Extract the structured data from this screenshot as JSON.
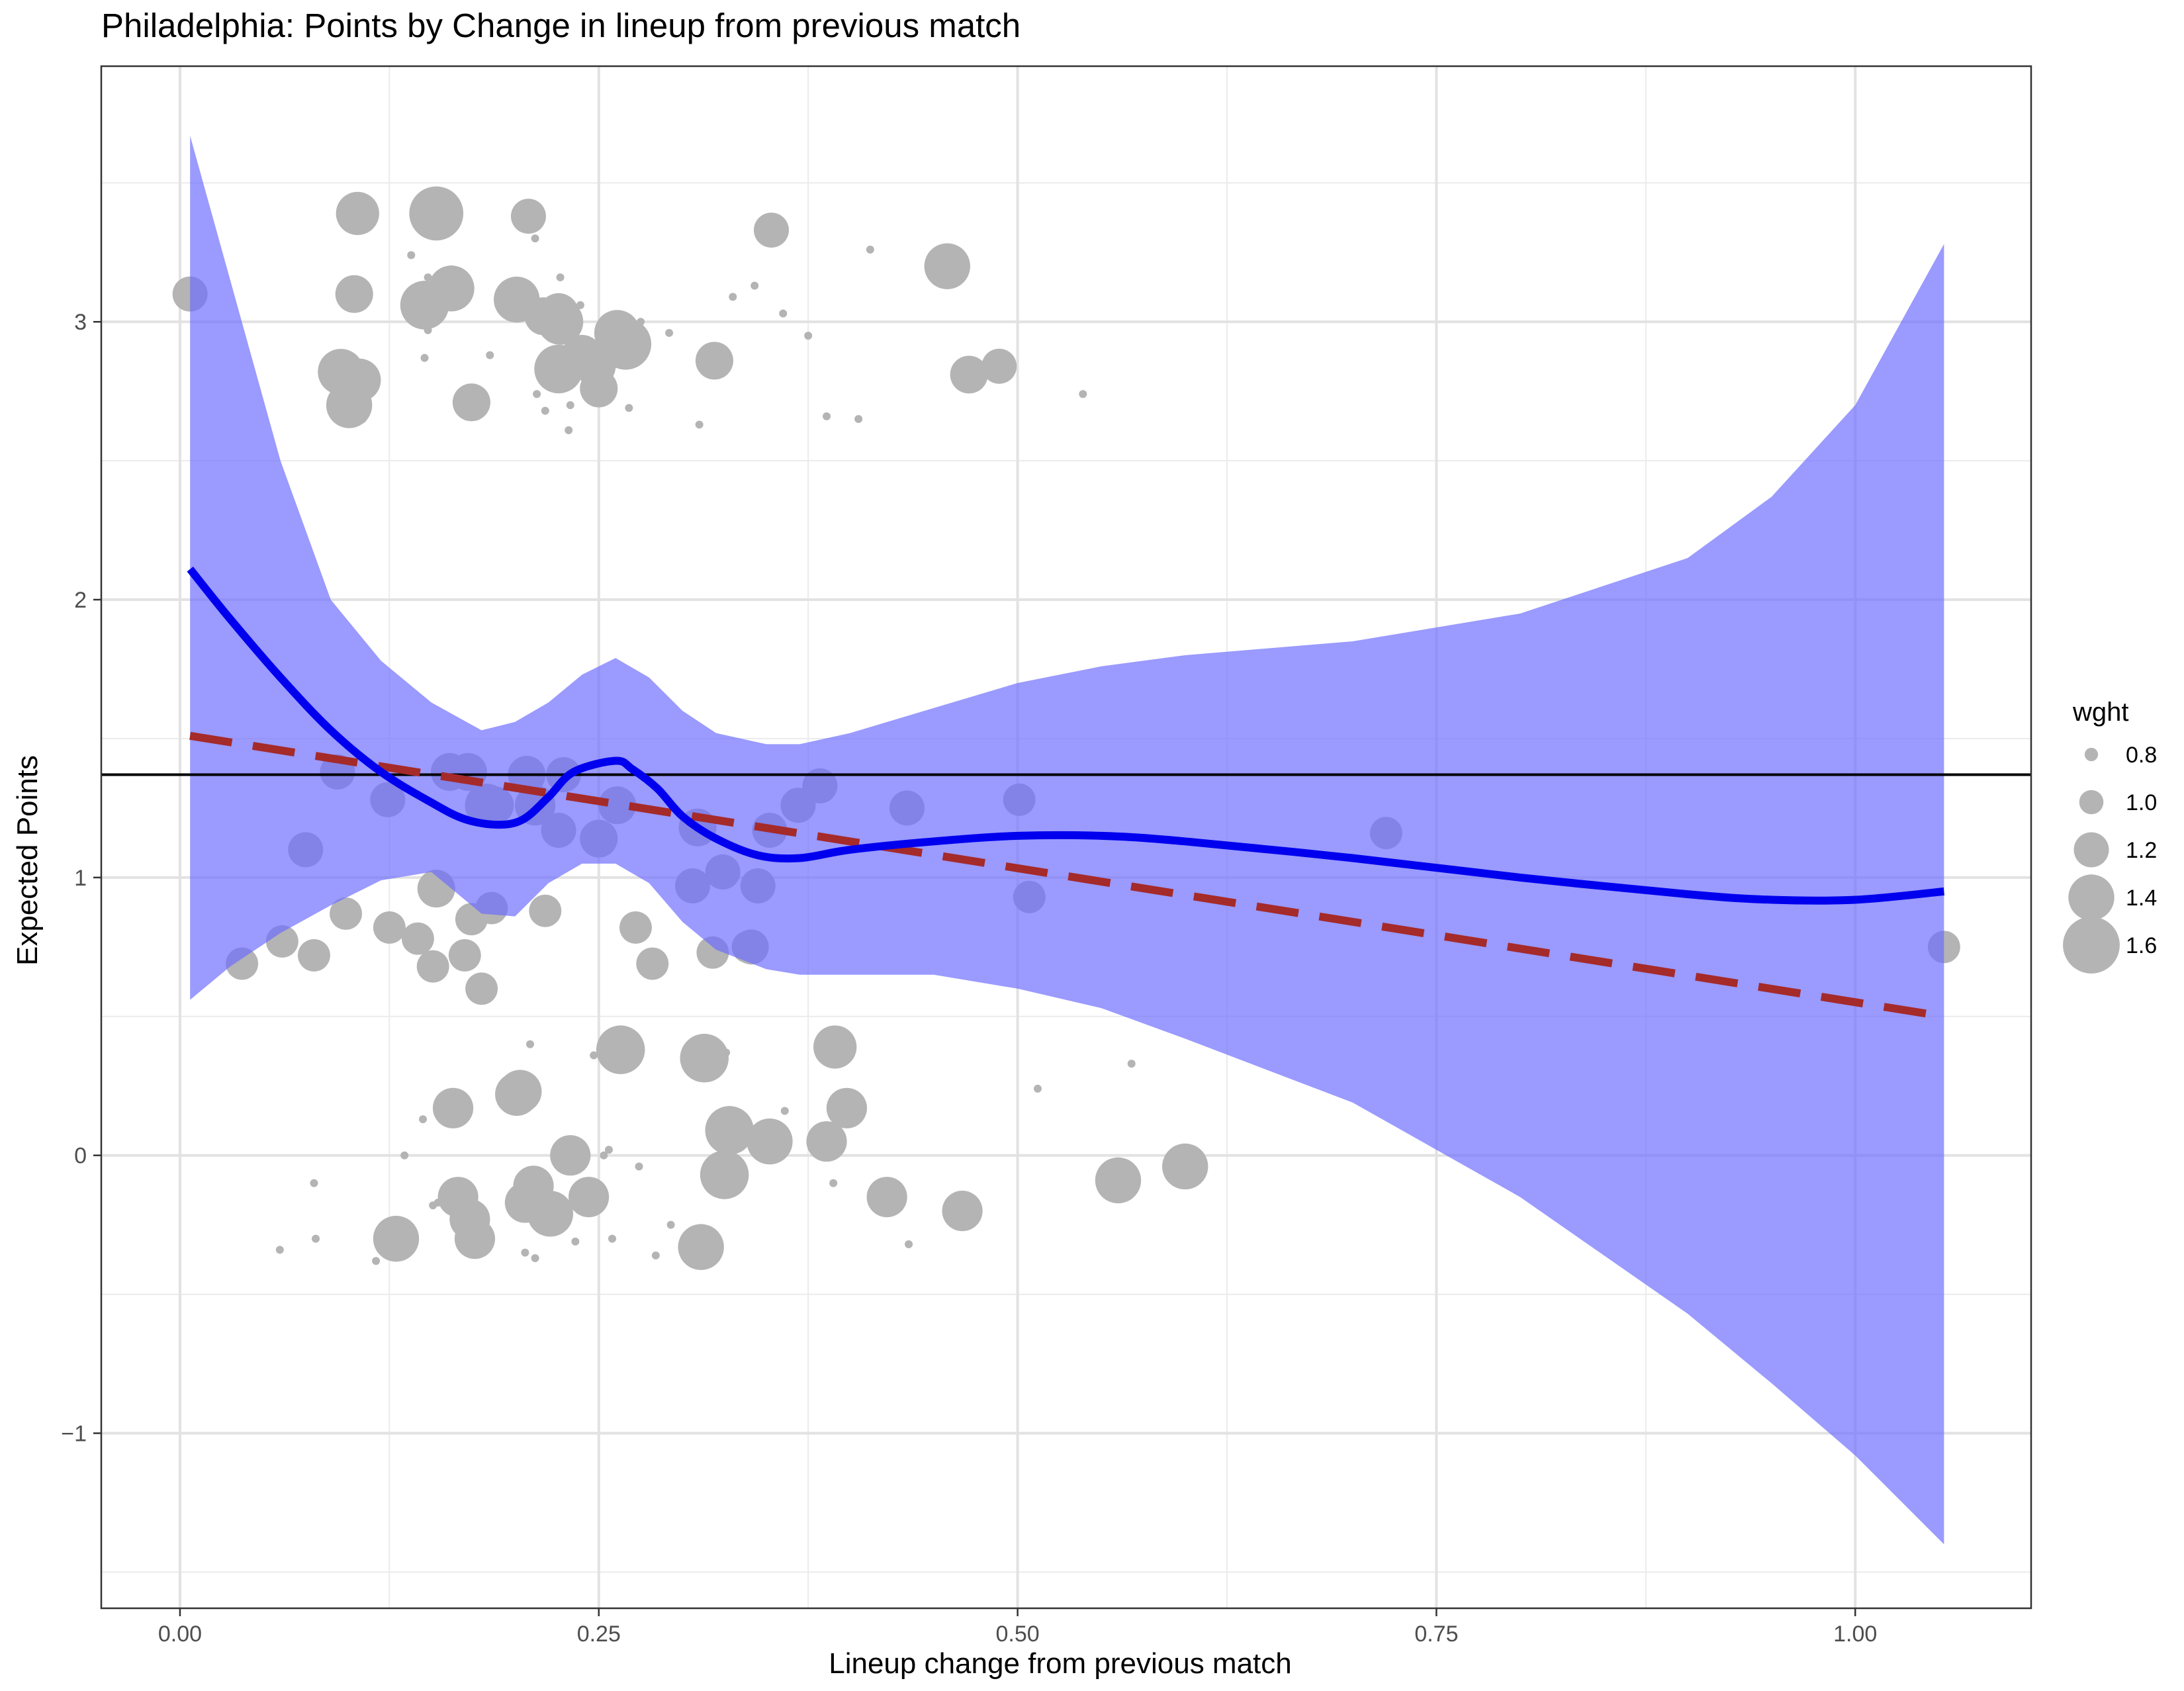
{
  "chart_data": {
    "type": "scatter",
    "title": "Philadelphia: Points by Change in lineup from previous match",
    "xlabel": "Lineup change from previous match",
    "ylabel": "Expected Points",
    "xlim": [
      -0.047,
      1.105
    ],
    "ylim": [
      -1.63,
      3.92
    ],
    "x_ticks": [
      0.0,
      0.25,
      0.5,
      0.75,
      1.0
    ],
    "x_tick_labels": [
      "0.00",
      "0.25",
      "0.50",
      "0.75",
      "1.00"
    ],
    "y_ticks": [
      -1,
      0,
      1,
      2,
      3
    ],
    "y_tick_labels": [
      "−1",
      "0",
      "1",
      "2",
      "3"
    ],
    "grid": true,
    "legend": {
      "title": "wght",
      "placement": "right",
      "entries": [
        {
          "label": "0.8",
          "value": 0.8
        },
        {
          "label": "1.0",
          "value": 1.0
        },
        {
          "label": "1.2",
          "value": 1.2
        },
        {
          "label": "1.4",
          "value": 1.4
        },
        {
          "label": "1.6",
          "value": 1.6
        }
      ]
    },
    "colors": {
      "points": "#b4b4b4",
      "ribbon": "#6a6aff",
      "smooth": "#0000ee",
      "linear": "#a52a2a",
      "hline": "#000000"
    },
    "hline_y": 1.37,
    "linear_fit": {
      "x": [
        0.006,
        1.053
      ],
      "y": [
        1.51,
        0.5
      ]
    },
    "smooth": {
      "x": [
        0.006,
        0.03,
        0.06,
        0.09,
        0.12,
        0.15,
        0.17,
        0.19,
        0.205,
        0.22,
        0.235,
        0.26,
        0.27,
        0.285,
        0.3,
        0.32,
        0.345,
        0.37,
        0.4,
        0.45,
        0.5,
        0.55,
        0.6,
        0.7,
        0.8,
        0.9,
        0.95,
        1.0,
        1.053
      ],
      "y": [
        2.11,
        1.93,
        1.72,
        1.53,
        1.38,
        1.27,
        1.21,
        1.19,
        1.21,
        1.29,
        1.38,
        1.42,
        1.39,
        1.32,
        1.22,
        1.14,
        1.08,
        1.07,
        1.1,
        1.13,
        1.15,
        1.15,
        1.13,
        1.07,
        1.0,
        0.94,
        0.92,
        0.92,
        0.95
      ]
    },
    "ribbon": {
      "x": [
        0.006,
        0.03,
        0.06,
        0.09,
        0.12,
        0.15,
        0.18,
        0.2,
        0.22,
        0.24,
        0.26,
        0.28,
        0.3,
        0.32,
        0.35,
        0.37,
        0.4,
        0.45,
        0.5,
        0.55,
        0.6,
        0.7,
        0.8,
        0.9,
        0.95,
        1.0,
        1.053
      ],
      "upper": [
        3.67,
        3.15,
        2.5,
        2.0,
        1.78,
        1.63,
        1.53,
        1.56,
        1.63,
        1.73,
        1.79,
        1.72,
        1.6,
        1.52,
        1.48,
        1.48,
        1.52,
        1.61,
        1.7,
        1.76,
        1.8,
        1.85,
        1.95,
        2.15,
        2.37,
        2.7,
        3.28
      ],
      "lower": [
        0.56,
        0.68,
        0.8,
        0.9,
        0.99,
        1.02,
        0.87,
        0.86,
        0.98,
        1.05,
        1.05,
        0.98,
        0.84,
        0.74,
        0.67,
        0.65,
        0.65,
        0.65,
        0.6,
        0.53,
        0.42,
        0.19,
        -0.15,
        -0.57,
        -0.82,
        -1.08,
        -1.4
      ]
    },
    "series": [
      {
        "x": [
          0.006,
          0.106,
          0.107,
          0.153,
          0.104,
          0.146,
          0.162,
          0.201,
          0.217,
          0.227,
          0.226,
          0.261,
          0.266,
          0.096,
          0.101,
          0.24,
          0.248,
          0.458,
          0.174,
          0.353,
          0.319,
          0.471,
          0.489,
          0.208,
          0.226,
          0.138,
          0.233,
          0.232,
          0.212,
          0.227,
          0.261,
          0.218,
          0.239,
          0.237,
          0.228,
          0.268,
          0.185,
          0.148,
          0.146,
          0.292,
          0.412,
          0.275,
          0.33,
          0.36,
          0.343,
          0.375,
          0.386,
          0.405,
          0.31,
          0.539,
          0.236,
          0.109,
          0.213,
          0.234,
          0.148,
          0.25
        ],
        "y": [
          3.1,
          3.39,
          2.79,
          3.39,
          3.1,
          3.06,
          3.12,
          3.08,
          3.02,
          3.0,
          2.83,
          2.96,
          2.92,
          2.82,
          2.7,
          2.88,
          2.84,
          3.2,
          2.71,
          3.33,
          2.86,
          2.81,
          2.84,
          3.38,
          3.03,
          3.24,
          2.7,
          2.61,
          3.3,
          3.16,
          2.93,
          2.68,
          3.06,
          3.01,
          2.77,
          2.69,
          2.88,
          2.97,
          2.87,
          2.96,
          3.26,
          3.0,
          3.09,
          3.03,
          3.13,
          2.95,
          2.66,
          2.65,
          2.63,
          2.74,
          2.82,
          2.65,
          2.74,
          2.79,
          3.16,
          2.76
        ],
        "w": [
          1.2,
          1.35,
          1.35,
          1.55,
          1.25,
          1.45,
          1.4,
          1.4,
          1.25,
          1.4,
          1.45,
          1.4,
          1.5,
          1.4,
          1.4,
          1.3,
          1.3,
          1.4,
          1.25,
          1.2,
          1.25,
          1.25,
          1.2,
          1.2,
          1.3,
          0.7,
          0.7,
          0.7,
          0.7,
          0.7,
          0.7,
          0.7,
          0.7,
          0.7,
          0.7,
          0.7,
          0.7,
          0.7,
          0.7,
          0.7,
          0.7,
          0.7,
          0.7,
          0.7,
          0.7,
          0.7,
          0.7,
          0.7,
          0.7,
          0.7,
          0.7,
          0.7,
          0.7,
          0.7,
          0.7,
          1.25
        ]
      },
      {
        "x": [
          0.094,
          0.075,
          0.124,
          0.172,
          0.161,
          0.188,
          0.226,
          0.207,
          0.212,
          0.25,
          0.261,
          0.309,
          0.306,
          0.324,
          0.341,
          0.345,
          0.369,
          0.352,
          0.382,
          0.434,
          0.501,
          0.507,
          0.72,
          1.053,
          0.153,
          0.186,
          0.183,
          0.218,
          0.174,
          0.099,
          0.061,
          0.08,
          0.037,
          0.125,
          0.142,
          0.151,
          0.17,
          0.18,
          0.272,
          0.282,
          0.318,
          0.339,
          0.229
        ],
        "y": [
          1.38,
          1.1,
          1.28,
          1.38,
          1.38,
          1.26,
          1.17,
          1.37,
          1.26,
          1.14,
          1.26,
          1.18,
          0.97,
          1.02,
          0.75,
          0.97,
          1.26,
          1.17,
          1.33,
          1.25,
          1.28,
          0.93,
          1.16,
          0.75,
          0.96,
          0.89,
          1.26,
          0.88,
          0.85,
          0.87,
          0.77,
          0.72,
          0.69,
          0.82,
          0.78,
          0.68,
          0.72,
          0.6,
          0.82,
          0.69,
          0.73,
          0.75,
          1.37
        ],
        "w": [
          1.2,
          1.2,
          1.2,
          1.25,
          1.25,
          1.25,
          1.2,
          1.25,
          1.3,
          1.25,
          1.25,
          1.25,
          1.2,
          1.2,
          1.2,
          1.2,
          1.2,
          1.2,
          1.2,
          1.2,
          1.15,
          1.15,
          1.15,
          1.15,
          1.25,
          1.15,
          1.35,
          1.15,
          1.15,
          1.15,
          1.15,
          1.15,
          1.15,
          1.15,
          1.15,
          1.15,
          1.15,
          1.15,
          1.15,
          1.15,
          1.15,
          1.15,
          1.2
        ]
      },
      {
        "x": [
          0.263,
          0.313,
          0.201,
          0.163,
          0.328,
          0.391,
          0.352,
          0.398,
          0.386,
          0.422,
          0.467,
          0.56,
          0.6,
          0.311,
          0.129,
          0.166,
          0.176,
          0.211,
          0.221,
          0.233,
          0.244,
          0.325,
          0.173,
          0.206,
          0.0596,
          0.081,
          0.117,
          0.134,
          0.145,
          0.151,
          0.154,
          0.166,
          0.17,
          0.209,
          0.206,
          0.212,
          0.236,
          0.247,
          0.254,
          0.256,
          0.258,
          0.253,
          0.274,
          0.284,
          0.293,
          0.326,
          0.339,
          0.361,
          0.39,
          0.404,
          0.435,
          0.512,
          0.568,
          0.08,
          0.247,
          0.203
        ],
        "y": [
          0.38,
          0.35,
          0.22,
          0.17,
          0.09,
          0.39,
          0.05,
          0.17,
          0.05,
          -0.15,
          -0.2,
          -0.09,
          -0.04,
          -0.33,
          -0.3,
          -0.15,
          -0.3,
          -0.11,
          -0.21,
          0.0,
          -0.15,
          -0.07,
          -0.23,
          -0.17,
          -0.34,
          -0.3,
          -0.38,
          0.0,
          0.13,
          -0.18,
          -0.17,
          0.19,
          0.2,
          0.4,
          -0.35,
          -0.37,
          -0.31,
          -0.1,
          0.38,
          0.02,
          -0.3,
          0.0,
          -0.04,
          -0.36,
          -0.25,
          0.37,
          0.11,
          0.16,
          -0.1,
          0.16,
          -0.32,
          0.24,
          0.33,
          -0.1,
          0.36,
          0.23
        ],
        "w": [
          1.45,
          1.45,
          1.35,
          1.3,
          1.45,
          1.35,
          1.4,
          1.3,
          1.3,
          1.3,
          1.3,
          1.4,
          1.4,
          1.4,
          1.4,
          1.3,
          1.3,
          1.3,
          1.4,
          1.3,
          1.3,
          1.45,
          1.3,
          1.3,
          0.7,
          0.7,
          0.7,
          0.7,
          0.7,
          0.7,
          0.7,
          0.7,
          0.7,
          0.7,
          0.7,
          0.7,
          0.7,
          0.7,
          0.7,
          0.7,
          0.7,
          0.7,
          0.7,
          0.7,
          0.7,
          0.7,
          0.7,
          0.7,
          0.7,
          0.7,
          0.7,
          0.7,
          0.7,
          0.7,
          0.7,
          1.35
        ]
      }
    ]
  }
}
